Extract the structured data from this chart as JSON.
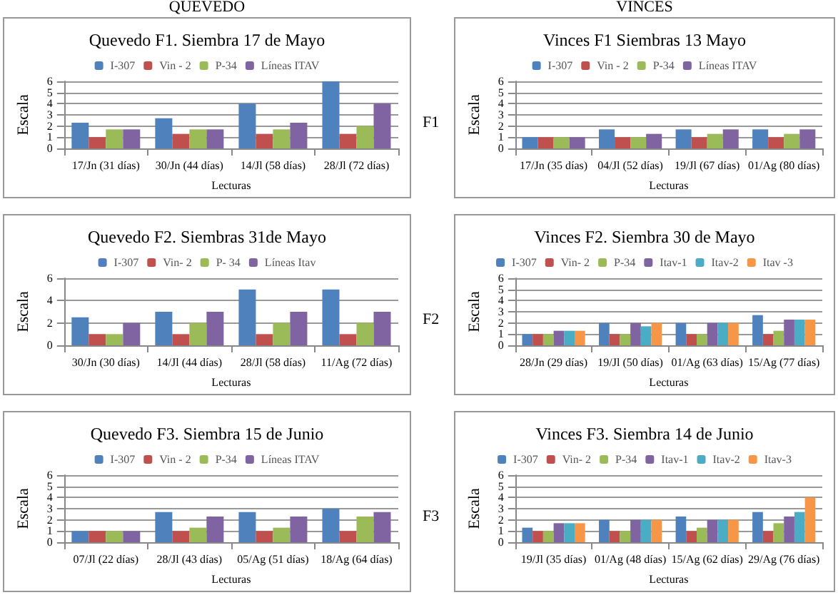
{
  "chart_data": [
    {
      "type": "bar",
      "title": "Quevedo F1. Siembra 17 de Mayo",
      "xlabel": "Lecturas",
      "ylabel": "Escala",
      "annotations": [
        "QUEVEDO"
      ],
      "categories": [
        "17/Jn (31 días)",
        "30/Jn (44 días)",
        "14/Jl (58 días)",
        "28/Jl (72 días)"
      ],
      "series": [
        {
          "name": "I-307",
          "color": "#4f81bd",
          "values": [
            2.3,
            2.7,
            4,
            6
          ]
        },
        {
          "name": "Vin - 2",
          "color": "#c0504d",
          "values": [
            1,
            1.3,
            1.3,
            1.3
          ]
        },
        {
          "name": "P-34",
          "color": "#9bbb59",
          "values": [
            1.7,
            1.7,
            1.7,
            2
          ]
        },
        {
          "name": "Líneas ITAV",
          "color": "#8064a2",
          "values": [
            1.7,
            1.7,
            2.3,
            4
          ]
        }
      ],
      "ylim": [
        0,
        6
      ],
      "yticks": [
        0,
        1,
        2,
        3,
        4,
        5,
        6
      ],
      "grid": "y",
      "legend": "top"
    },
    {
      "type": "bar",
      "title": "Vinces F1 Siembras 13 Mayo",
      "xlabel": "Lecturas",
      "ylabel": "Escala",
      "annotations": [
        "VINCES",
        "F1"
      ],
      "categories": [
        "17/Jn (35 días)",
        "04/Jl (52 días)",
        "19/Jl (67 días)",
        "01/Ag (80 días)"
      ],
      "series": [
        {
          "name": "I-307",
          "color": "#4f81bd",
          "values": [
            1,
            1.7,
            1.7,
            1.7
          ]
        },
        {
          "name": "Vin - 2",
          "color": "#c0504d",
          "values": [
            1,
            1,
            1,
            1
          ]
        },
        {
          "name": "P-34",
          "color": "#9bbb59",
          "values": [
            1,
            1,
            1.3,
            1.3
          ]
        },
        {
          "name": "Líneas ITAV",
          "color": "#8064a2",
          "values": [
            1,
            1.3,
            1.7,
            1.7
          ]
        }
      ],
      "ylim": [
        0,
        6
      ],
      "yticks": [
        0,
        1,
        2,
        3,
        4,
        5,
        6
      ],
      "grid": "y",
      "legend": "top"
    },
    {
      "type": "bar",
      "title": "Quevedo F2. Siembras 31de Mayo",
      "xlabel": "Lecturas",
      "ylabel": "Escala",
      "categories": [
        "30/Jn (30 días)",
        "14/Jl (44 días)",
        "28/Jl (58 días)",
        "11/Ag (72 días)"
      ],
      "series": [
        {
          "name": "I-307",
          "color": "#4f81bd",
          "values": [
            2.5,
            3,
            5,
            5
          ]
        },
        {
          "name": "Vin- 2",
          "color": "#c0504d",
          "values": [
            1,
            1,
            1,
            1
          ]
        },
        {
          "name": "P- 34",
          "color": "#9bbb59",
          "values": [
            1,
            2,
            2,
            2
          ]
        },
        {
          "name": "Líneas Itav",
          "color": "#8064a2",
          "values": [
            2,
            3,
            3,
            3
          ]
        }
      ],
      "ylim": [
        0,
        6
      ],
      "yticks": [
        0,
        2,
        4,
        6
      ],
      "grid": "y",
      "legend": "top"
    },
    {
      "type": "bar",
      "title": "Vinces F2. Siembra 30 de Mayo",
      "xlabel": "Lecturas",
      "ylabel": "Escala",
      "annotations": [
        "F2"
      ],
      "categories": [
        "28/Jn (29 días)",
        "19/Jl (50 días)",
        "01/Ag (63 días)",
        "15/Ag (77 días)"
      ],
      "series": [
        {
          "name": "I-307",
          "color": "#4f81bd",
          "values": [
            1,
            2,
            2,
            2.7
          ]
        },
        {
          "name": "Vin- 2",
          "color": "#c0504d",
          "values": [
            1,
            1,
            1,
            1
          ]
        },
        {
          "name": "P-34",
          "color": "#9bbb59",
          "values": [
            1,
            1,
            1,
            1.3
          ]
        },
        {
          "name": "Itav-1",
          "color": "#8064a2",
          "values": [
            1.3,
            2,
            2,
            2.3
          ]
        },
        {
          "name": "Itav-2",
          "color": "#4bacc6",
          "values": [
            1.3,
            1.7,
            2,
            2.3
          ]
        },
        {
          "name": "Itav -3",
          "color": "#f79646",
          "values": [
            1.3,
            2,
            2,
            2.3
          ]
        }
      ],
      "ylim": [
        0,
        6
      ],
      "yticks": [
        0,
        1,
        2,
        3,
        4,
        5,
        6
      ],
      "grid": "y",
      "legend": "top"
    },
    {
      "type": "bar",
      "title": "Quevedo F3. Siembra 15 de Junio",
      "xlabel": "Lecturas",
      "ylabel": "Escala",
      "categories": [
        "07/Jl (22 días)",
        "28/Jl (43 días)",
        "05/Ag (51 días)",
        "18/Ag (64 días)"
      ],
      "series": [
        {
          "name": "I-307",
          "color": "#4f81bd",
          "values": [
            1,
            2.7,
            2.7,
            3
          ]
        },
        {
          "name": "Vin - 2",
          "color": "#c0504d",
          "values": [
            1,
            1,
            1,
            1
          ]
        },
        {
          "name": "P-34",
          "color": "#9bbb59",
          "values": [
            1,
            1.3,
            1.3,
            2.3
          ]
        },
        {
          "name": "Líneas ITAV",
          "color": "#8064a2",
          "values": [
            1,
            2.3,
            2.3,
            2.7
          ]
        }
      ],
      "ylim": [
        0,
        6
      ],
      "yticks": [
        0,
        1,
        2,
        3,
        4,
        5,
        6
      ],
      "grid": "y",
      "legend": "top"
    },
    {
      "type": "bar",
      "title": "Vinces F3. Siembra 14 de Junio",
      "xlabel": "Lecturas",
      "ylabel": "Escala",
      "annotations": [
        "F3"
      ],
      "categories": [
        "19/Jl (35 días)",
        "01/Ag (48 días)",
        "15/Ag (62 días)",
        "29/Ag (76 días)"
      ],
      "series": [
        {
          "name": "I-307",
          "color": "#4f81bd",
          "values": [
            1.3,
            2,
            2.3,
            2.7
          ]
        },
        {
          "name": "Vin- 2",
          "color": "#c0504d",
          "values": [
            1,
            1,
            1,
            1
          ]
        },
        {
          "name": "P-34",
          "color": "#9bbb59",
          "values": [
            1,
            1,
            1.3,
            1.7
          ]
        },
        {
          "name": "Itav-1",
          "color": "#8064a2",
          "values": [
            1.7,
            2,
            2,
            2.3
          ]
        },
        {
          "name": "Itav-2",
          "color": "#4bacc6",
          "values": [
            1.7,
            2,
            2,
            2.7
          ]
        },
        {
          "name": "Itav-3",
          "color": "#f79646",
          "values": [
            1.7,
            2,
            2,
            4
          ]
        }
      ],
      "ylim": [
        0,
        6
      ],
      "yticks": [
        0,
        1,
        2,
        3,
        4,
        5,
        6
      ],
      "grid": "y",
      "legend": "top"
    }
  ]
}
